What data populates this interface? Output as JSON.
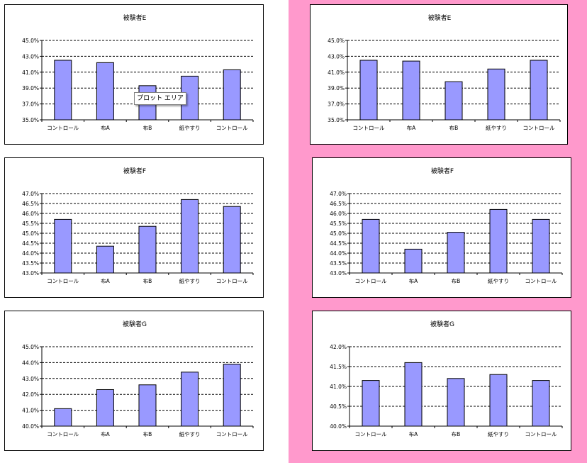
{
  "tooltip": {
    "text": "プロット エリア"
  },
  "colors": {
    "bar": "#9999ff",
    "page_bg": "#ffffff",
    "panel_bg": "#ff99cc"
  },
  "chart_data": [
    {
      "type": "bar",
      "title": "被験者E",
      "categories": [
        "コントロール",
        "布A",
        "布B",
        "紙やすり",
        "コントロール"
      ],
      "values": [
        42.5,
        42.2,
        39.3,
        40.5,
        41.3
      ],
      "ylim": [
        35.0,
        45.0
      ],
      "yticks": [
        "35.0%",
        "37.0%",
        "39.0%",
        "41.0%",
        "43.0%",
        "45.0%"
      ],
      "ylabel": "",
      "xlabel": "",
      "grid": true
    },
    {
      "type": "bar",
      "title": "被験者F",
      "categories": [
        "コントロール",
        "布A",
        "布B",
        "紙やすり",
        "コントロール"
      ],
      "values": [
        45.7,
        44.35,
        45.35,
        46.7,
        46.35
      ],
      "ylim": [
        43.0,
        47.0
      ],
      "yticks": [
        "43.0%",
        "43.5%",
        "44.0%",
        "44.5%",
        "45.0%",
        "45.5%",
        "46.0%",
        "46.5%",
        "47.0%"
      ],
      "ylabel": "",
      "xlabel": "",
      "grid": true
    },
    {
      "type": "bar",
      "title": "被験者G",
      "categories": [
        "コントロール",
        "布A",
        "布B",
        "紙やすり",
        "コントロール"
      ],
      "values": [
        41.1,
        42.3,
        42.6,
        43.4,
        43.9
      ],
      "ylim": [
        40.0,
        45.0
      ],
      "yticks": [
        "40.0%",
        "41.0%",
        "42.0%",
        "43.0%",
        "44.0%",
        "45.0%"
      ],
      "ylabel": "",
      "xlabel": "",
      "grid": true
    },
    {
      "type": "bar",
      "title": "被験者E",
      "categories": [
        "コントロール",
        "布A",
        "布B",
        "紙やすり",
        "コントロール"
      ],
      "values": [
        42.5,
        42.4,
        39.8,
        41.4,
        42.5
      ],
      "ylim": [
        35.0,
        45.0
      ],
      "yticks": [
        "35.0%",
        "37.0%",
        "39.0%",
        "41.0%",
        "43.0%",
        "45.0%"
      ],
      "ylabel": "",
      "xlabel": "",
      "grid": true
    },
    {
      "type": "bar",
      "title": "被験者F",
      "categories": [
        "コントロール",
        "布A",
        "布B",
        "紙やすり",
        "コントロール"
      ],
      "values": [
        45.7,
        44.2,
        45.05,
        46.2,
        45.7
      ],
      "ylim": [
        43.0,
        47.0
      ],
      "yticks": [
        "43.0%",
        "43.5%",
        "44.0%",
        "44.5%",
        "45.0%",
        "45.5%",
        "46.0%",
        "46.5%",
        "47.0%"
      ],
      "ylabel": "",
      "xlabel": "",
      "grid": true
    },
    {
      "type": "bar",
      "title": "被験者G",
      "categories": [
        "コントロール",
        "布A",
        "布B",
        "紙やすり",
        "コントロール"
      ],
      "values": [
        41.15,
        41.6,
        41.2,
        41.3,
        41.15
      ],
      "ylim": [
        40.0,
        42.0
      ],
      "yticks": [
        "40.0%",
        "40.5%",
        "41.0%",
        "41.5%",
        "42.0%"
      ],
      "ylabel": "",
      "xlabel": "",
      "grid": true
    }
  ]
}
